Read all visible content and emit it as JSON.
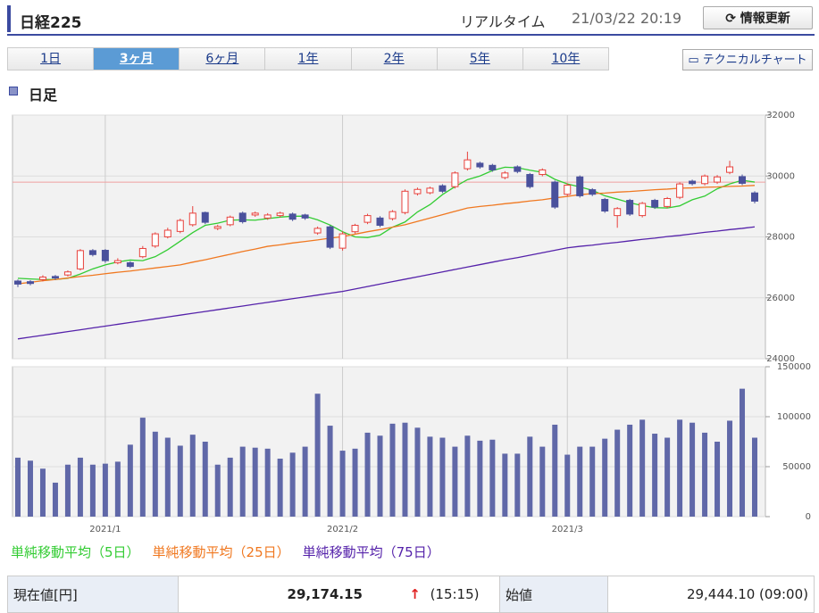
{
  "header": {
    "title": "日経225",
    "realtime_label": "リアルタイム",
    "timestamp": "21/03/22 20:19",
    "refresh_button": "情報更新"
  },
  "tabs": [
    "1日",
    "3ヶ月",
    "6ヶ月",
    "1年",
    "2年",
    "5年",
    "10年"
  ],
  "active_tab": 1,
  "technical_button": "テクニカルチャート",
  "section_title": "日足",
  "chart_data": {
    "type": "candlestick",
    "categories": [
      null,
      null,
      null,
      null,
      null,
      null,
      null,
      "2021/1",
      null,
      null,
      null,
      null,
      null,
      null,
      null,
      null,
      null,
      null,
      null,
      null,
      null,
      null,
      null,
      null,
      null,
      null,
      "2021/2",
      null,
      null,
      null,
      null,
      null,
      null,
      null,
      null,
      null,
      null,
      null,
      null,
      null,
      null,
      null,
      null,
      null,
      "2021/3",
      null,
      null,
      null,
      null,
      null,
      null,
      null,
      null,
      null,
      null,
      null,
      null,
      null,
      null,
      null
    ],
    "open": [
      26550,
      26530,
      26600,
      26700,
      26750,
      26950,
      27550,
      27560,
      27150,
      27150,
      27350,
      27700,
      28000,
      28180,
      28400,
      28800,
      28280,
      28400,
      28780,
      28720,
      28620,
      28700,
      28750,
      28720,
      28130,
      28330,
      27630,
      28170,
      28480,
      28620,
      28600,
      28800,
      29420,
      29450,
      29680,
      29650,
      30240,
      30420,
      30350,
      29950,
      30300,
      30050,
      30050,
      29800,
      29400,
      29970,
      29550,
      29230,
      28700,
      29200,
      28700,
      29200,
      29000,
      29300,
      29830,
      29750,
      29800,
      30120,
      29980,
      29444.1
    ],
    "high": [
      26600,
      26580,
      26740,
      26750,
      26900,
      27600,
      27600,
      27600,
      27300,
      27200,
      27700,
      28150,
      28300,
      28600,
      29010,
      28830,
      28400,
      28700,
      28830,
      28830,
      28780,
      28830,
      28800,
      28760,
      28340,
      28380,
      28180,
      28430,
      28760,
      28680,
      28880,
      29560,
      29620,
      29650,
      29730,
      30150,
      30800,
      30470,
      30400,
      30160,
      30350,
      30100,
      30250,
      29850,
      29760,
      30020,
      29600,
      29280,
      28980,
      29250,
      29150,
      29250,
      29310,
      29790,
      29880,
      30050,
      30030,
      30500,
      30050,
      29500
    ],
    "low": [
      26350,
      26410,
      26540,
      26590,
      26700,
      26900,
      27360,
      27150,
      27100,
      26980,
      27300,
      27640,
      27950,
      28120,
      28340,
      28420,
      28220,
      28350,
      28440,
      28660,
      28560,
      28640,
      28520,
      28560,
      28070,
      27600,
      27550,
      28110,
      28420,
      28320,
      28540,
      28740,
      29360,
      29400,
      29440,
      29590,
      30180,
      30240,
      30140,
      29890,
      30090,
      29590,
      29990,
      28920,
      29340,
      29290,
      29340,
      28790,
      28300,
      28690,
      28640,
      28920,
      28940,
      29240,
      29690,
      29690,
      29740,
      30060,
      29700,
      29100
    ],
    "close": [
      26450,
      26470,
      26680,
      26650,
      26850,
      27550,
      27420,
      27220,
      27220,
      27030,
      27620,
      28100,
      28220,
      28540,
      28780,
      28480,
      28340,
      28650,
      28500,
      28780,
      28720,
      28780,
      28580,
      28620,
      28280,
      27660,
      28100,
      28380,
      28700,
      28380,
      28830,
      29500,
      29560,
      29600,
      29500,
      30100,
      30530,
      30300,
      30200,
      30100,
      30150,
      29650,
      30200,
      28980,
      29700,
      29350,
      29400,
      28850,
      28930,
      28750,
      29100,
      28980,
      29260,
      29740,
      29750,
      30000,
      29970,
      30300,
      29760,
      29174.15
    ],
    "up_color": "#e8413c",
    "down_color": "#4a519c",
    "reference_line": 29800,
    "reference_color": "#f0a0a0",
    "ylim": [
      24000,
      32000
    ],
    "yticks": [
      24000,
      26000,
      28000,
      30000,
      32000
    ],
    "grid": true,
    "series": [
      {
        "name": "単純移動平均（5日）",
        "color": "#33cc33",
        "values": [
          26640,
          26620,
          26600,
          26600,
          26640,
          26780,
          26950,
          27080,
          27180,
          27240,
          27220,
          27350,
          27580,
          27860,
          28140,
          28380,
          28450,
          28550,
          28560,
          28550,
          28600,
          28650,
          28680,
          28680,
          28560,
          28390,
          28170,
          28000,
          27980,
          28060,
          28320,
          28490,
          28820,
          29060,
          29390,
          29650,
          29880,
          30000,
          30180,
          30290,
          30270,
          30190,
          30120,
          29890,
          29740,
          29640,
          29530,
          29350,
          29240,
          29120,
          29030,
          28960,
          28950,
          29020,
          29220,
          29340,
          29580,
          29740,
          29860,
          29800
        ]
      },
      {
        "name": "単純移動平均（25日）",
        "color": "#f07820",
        "values": [
          26460,
          26510,
          26560,
          26600,
          26650,
          26700,
          26740,
          26790,
          26840,
          26880,
          26930,
          26980,
          27030,
          27080,
          27170,
          27250,
          27340,
          27430,
          27520,
          27600,
          27690,
          27740,
          27800,
          27850,
          27900,
          27960,
          28010,
          28090,
          28170,
          28240,
          28320,
          28400,
          28510,
          28620,
          28730,
          28840,
          28950,
          29000,
          29040,
          29090,
          29130,
          29180,
          29220,
          29280,
          29330,
          29390,
          29420,
          29440,
          29470,
          29490,
          29520,
          29550,
          29570,
          29600,
          29610,
          29630,
          29640,
          29660,
          29670,
          29690
        ]
      },
      {
        "name": "単純移動平均（75日）",
        "color": "#5522aa",
        "values": [
          24650,
          24710,
          24770,
          24830,
          24890,
          24950,
          25010,
          25070,
          25130,
          25190,
          25250,
          25310,
          25370,
          25430,
          25490,
          25550,
          25610,
          25670,
          25730,
          25790,
          25850,
          25910,
          25970,
          26030,
          26090,
          26150,
          26210,
          26290,
          26370,
          26450,
          26530,
          26610,
          26690,
          26770,
          26850,
          26930,
          27010,
          27090,
          27170,
          27250,
          27320,
          27400,
          27480,
          27560,
          27640,
          27690,
          27730,
          27780,
          27820,
          27870,
          27920,
          27960,
          28010,
          28050,
          28100,
          28150,
          28190,
          28240,
          28280,
          28330
        ]
      }
    ],
    "volume": {
      "color": "#6068a8",
      "ylim": [
        0,
        150000
      ],
      "yticks": [
        0,
        50000,
        100000,
        150000
      ],
      "values": [
        59000,
        56000,
        48000,
        34000,
        52000,
        59000,
        52000,
        53000,
        55000,
        72000,
        99000,
        85000,
        79000,
        71000,
        82000,
        75000,
        52000,
        59000,
        70000,
        69000,
        68000,
        58000,
        64000,
        70000,
        123000,
        91000,
        66000,
        68000,
        84000,
        81000,
        93000,
        94000,
        89000,
        80000,
        79000,
        70000,
        81000,
        76000,
        77000,
        63000,
        63000,
        80000,
        70000,
        92000,
        62000,
        70000,
        70000,
        78000,
        87000,
        92000,
        97000,
        83000,
        79000,
        97000,
        94000,
        84000,
        75000,
        96000,
        128000,
        79000
      ]
    }
  },
  "quote_table": {
    "rows": [
      [
        "現在値[円]",
        "29,174.15",
        "↑",
        "(15:15)",
        "始値",
        "29,444.10 (09:00)"
      ]
    ]
  }
}
